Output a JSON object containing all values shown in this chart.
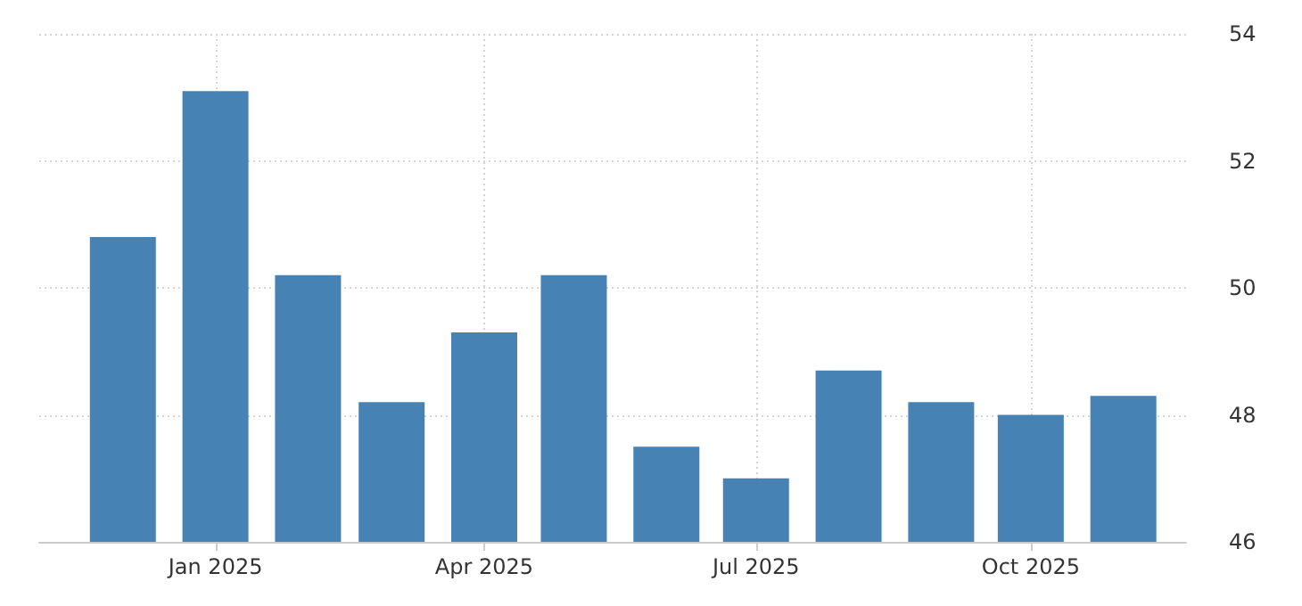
{
  "chart_data": {
    "type": "bar",
    "x": [
      "2024-12",
      "2025-01",
      "2025-02",
      "2025-03",
      "2025-04",
      "2025-05",
      "2025-06",
      "2025-07",
      "2025-08",
      "2025-09",
      "2025-10",
      "2025-11"
    ],
    "values": [
      50.8,
      53.1,
      50.2,
      48.2,
      49.3,
      50.2,
      47.5,
      47.0,
      48.7,
      48.2,
      48.0,
      48.3
    ],
    "color": "#4682b4",
    "xlim": [
      "2024-11-03",
      "2025-11-22"
    ],
    "xticks": [
      {
        "value": "2025-01",
        "label": "Jan 2025"
      },
      {
        "value": "2025-04",
        "label": "Apr 2025"
      },
      {
        "value": "2025-07",
        "label": "Jul 2025"
      },
      {
        "value": "2025-10",
        "label": "Oct 2025"
      }
    ],
    "ylim": [
      46,
      54
    ],
    "yticks": [
      46,
      48,
      50,
      52,
      54
    ],
    "grid": true
  }
}
